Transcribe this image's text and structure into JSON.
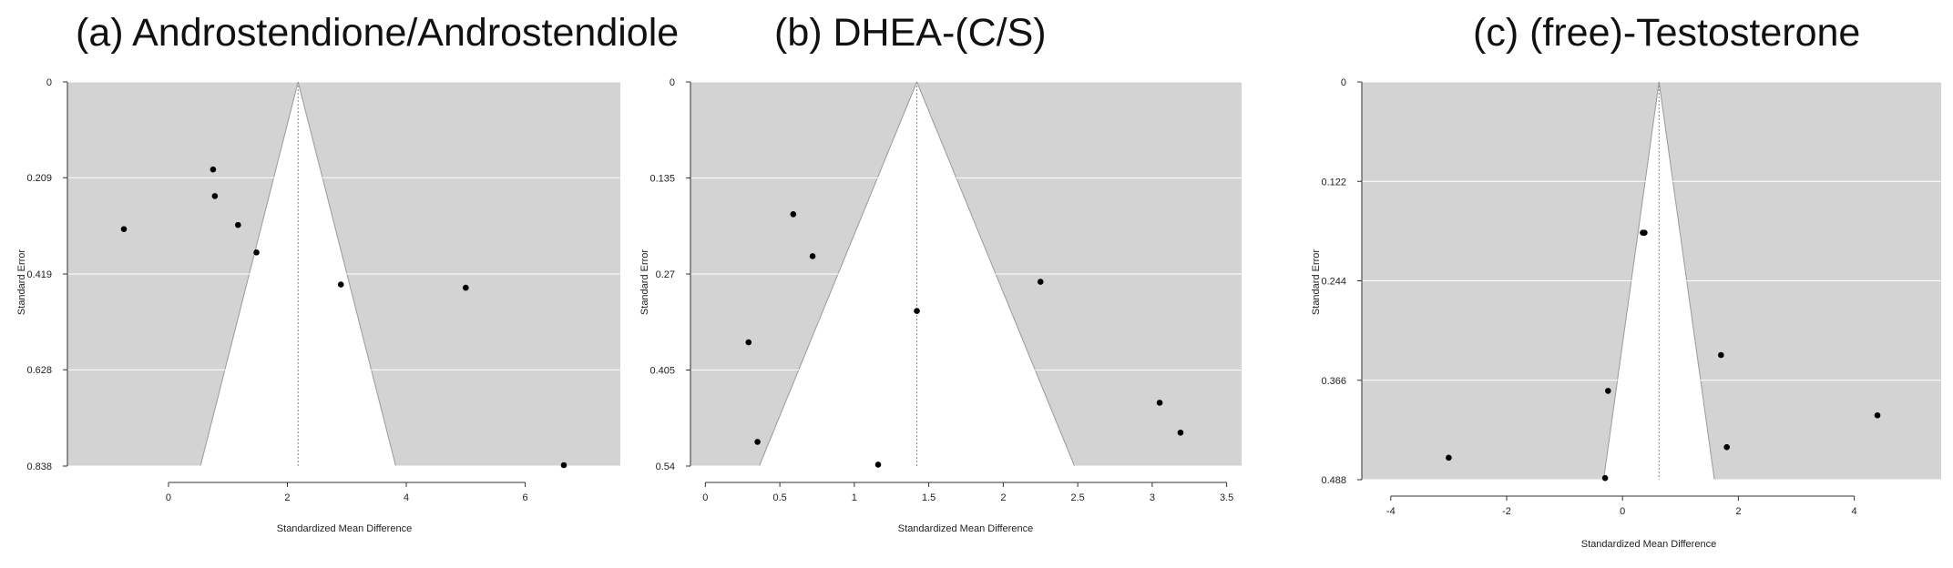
{
  "colors": {
    "panel_background": "#d3d3d3",
    "funnel_fill": "#ffffff",
    "grid": "#ffffff",
    "points": "#000000",
    "reference_line": "#8c8c8c"
  },
  "chart_data": [
    {
      "type": "scatter",
      "subtype": "funnel",
      "title": "(a) Androstendione/Androstendiole",
      "xlabel": "Standardized Mean Difference",
      "ylabel": "Standard Error",
      "xlim": [
        -1.7,
        7.6
      ],
      "ylim": [
        0.838,
        0
      ],
      "xticks": [
        0,
        2,
        4,
        6
      ],
      "yticks": [
        0,
        0.209,
        0.419,
        0.628,
        0.838
      ],
      "ytick_labels": [
        "0",
        "0.209",
        "0.419",
        "0.628",
        "0.838"
      ],
      "summary_effect": 2.18,
      "grid": true,
      "points": [
        {
          "x": -0.75,
          "y": 0.321
        },
        {
          "x": 0.75,
          "y": 0.191
        },
        {
          "x": 0.78,
          "y": 0.249
        },
        {
          "x": 1.17,
          "y": 0.312
        },
        {
          "x": 1.48,
          "y": 0.372
        },
        {
          "x": 2.9,
          "y": 0.442
        },
        {
          "x": 5.0,
          "y": 0.449
        },
        {
          "x": 6.65,
          "y": 0.836
        }
      ]
    },
    {
      "type": "scatter",
      "subtype": "funnel",
      "title": "(b) DHEA-(C/S)",
      "xlabel": "Standardized Mean Difference",
      "ylabel": "Standard Error",
      "xlim": [
        -0.1,
        3.6
      ],
      "ylim": [
        0.54,
        0
      ],
      "xticks": [
        0,
        0.5,
        1,
        1.5,
        2,
        2.5,
        3,
        3.5
      ],
      "xtick_labels": [
        "0",
        "0.5",
        "1",
        "1.5",
        "2",
        "2.5",
        "3",
        "3.5"
      ],
      "yticks": [
        0,
        0.135,
        0.27,
        0.405,
        0.54
      ],
      "ytick_labels": [
        "0",
        "0.135",
        "0.27",
        "0.405",
        "0.54"
      ],
      "summary_effect": 1.42,
      "grid": true,
      "points": [
        {
          "x": 0.59,
          "y": 0.186
        },
        {
          "x": 0.72,
          "y": 0.245
        },
        {
          "x": 1.42,
          "y": 0.322
        },
        {
          "x": 0.29,
          "y": 0.366
        },
        {
          "x": 0.35,
          "y": 0.506
        },
        {
          "x": 1.16,
          "y": 0.538
        },
        {
          "x": 2.25,
          "y": 0.281
        },
        {
          "x": 3.05,
          "y": 0.451
        },
        {
          "x": 3.19,
          "y": 0.493
        }
      ]
    },
    {
      "type": "scatter",
      "subtype": "funnel",
      "title": "(c) (free)-Testosterone",
      "xlabel": "Standardized Mean Difference",
      "ylabel": "Standard Error",
      "xlim": [
        -4.5,
        5.5
      ],
      "ylim": [
        0.488,
        0
      ],
      "xticks": [
        -4,
        -2,
        0,
        2,
        4
      ],
      "yticks": [
        0,
        0.122,
        0.244,
        0.366,
        0.488
      ],
      "ytick_labels": [
        "0",
        "0.122",
        "0.244",
        "0.366",
        "0.488"
      ],
      "summary_effect": 0.63,
      "grid": true,
      "points": [
        {
          "x": 0.35,
          "y": 0.185
        },
        {
          "x": 0.38,
          "y": 0.185
        },
        {
          "x": 1.7,
          "y": 0.335
        },
        {
          "x": -0.25,
          "y": 0.379
        },
        {
          "x": 4.4,
          "y": 0.409
        },
        {
          "x": 1.8,
          "y": 0.448
        },
        {
          "x": -3.0,
          "y": 0.461
        },
        {
          "x": -0.3,
          "y": 0.486
        }
      ]
    }
  ]
}
